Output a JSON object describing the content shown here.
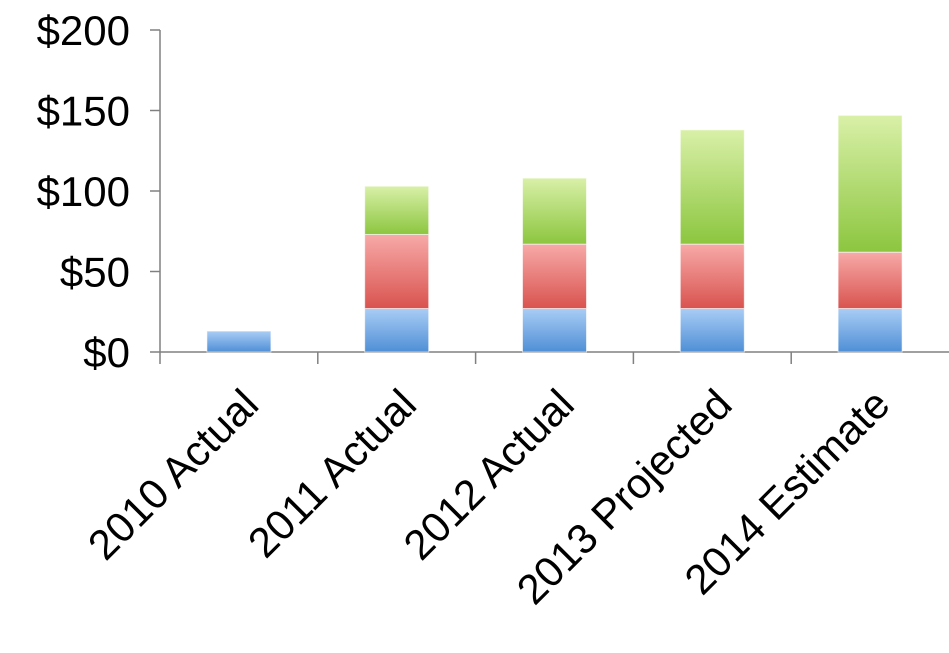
{
  "chart_data": {
    "type": "bar",
    "stacked": true,
    "categories": [
      "2010 Actual",
      "2011 Actual",
      "2012 Actual",
      "2013 Projected",
      "2014 Estimate"
    ],
    "series": [
      {
        "values": [
          13,
          27,
          27,
          27,
          27
        ],
        "color": "#5b9bd5"
      },
      {
        "values": [
          0,
          46,
          40,
          40,
          35
        ],
        "color": "#e06666"
      },
      {
        "values": [
          0,
          30,
          41,
          71,
          85
        ],
        "color": "#9bcb52"
      }
    ],
    "ylim": [
      0,
      200
    ],
    "yticks": [
      0,
      50,
      100,
      150,
      200
    ],
    "ytick_labels": [
      "$0",
      "$50",
      "$100",
      "$150",
      "$200"
    ],
    "grid": false,
    "legend": "none",
    "xlabel": "",
    "ylabel": "",
    "title": ""
  }
}
